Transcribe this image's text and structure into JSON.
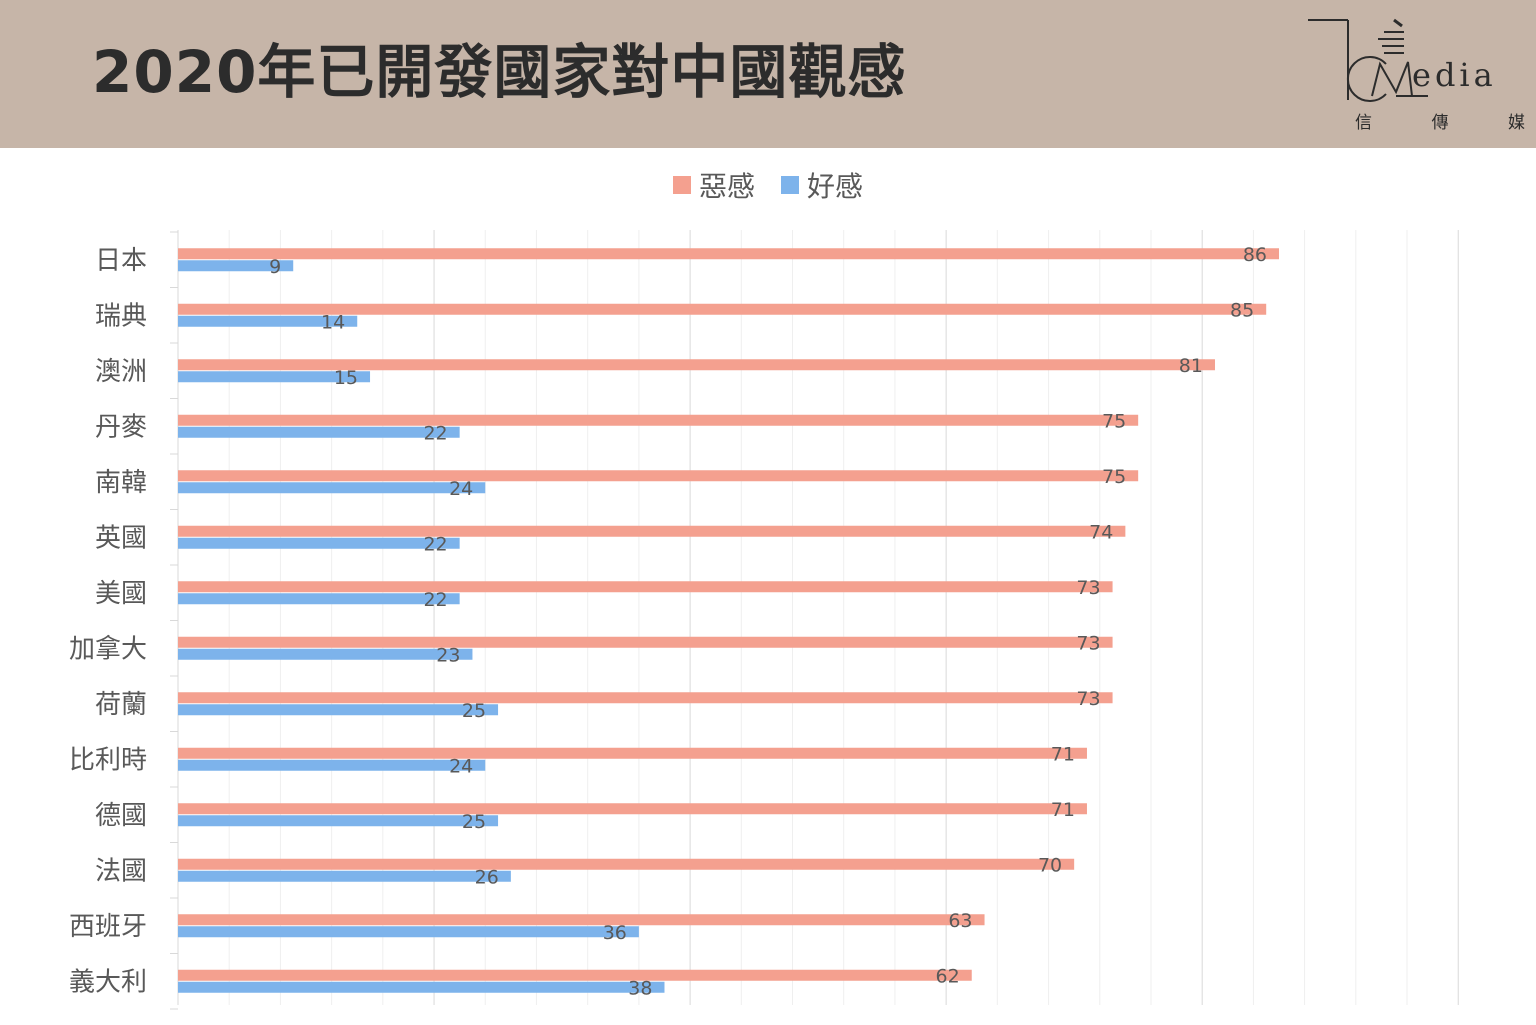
{
  "header": {
    "title": "2020年已開發國家對中國觀感"
  },
  "logo": {
    "word": "edia",
    "sub": [
      "信",
      "傳",
      "媒"
    ]
  },
  "chart_data": {
    "type": "bar",
    "orientation": "horizontal",
    "title": "2020年已開發國家對中國觀感",
    "legend_position": "top",
    "grid": true,
    "xlim": [
      0,
      100
    ],
    "categories": [
      "日本",
      "瑞典",
      "澳洲",
      "丹麥",
      "南韓",
      "英國",
      "美國",
      "加拿大",
      "荷蘭",
      "比利時",
      "德國",
      "法國",
      "西班牙",
      "義大利"
    ],
    "series": [
      {
        "name": "惡感",
        "color": "#f4a08f",
        "values": [
          86,
          85,
          81,
          75,
          75,
          74,
          73,
          73,
          73,
          71,
          71,
          70,
          63,
          62
        ]
      },
      {
        "name": "好感",
        "color": "#7db3eb",
        "values": [
          9,
          14,
          15,
          22,
          24,
          22,
          22,
          23,
          25,
          24,
          25,
          26,
          36,
          38
        ]
      }
    ]
  }
}
